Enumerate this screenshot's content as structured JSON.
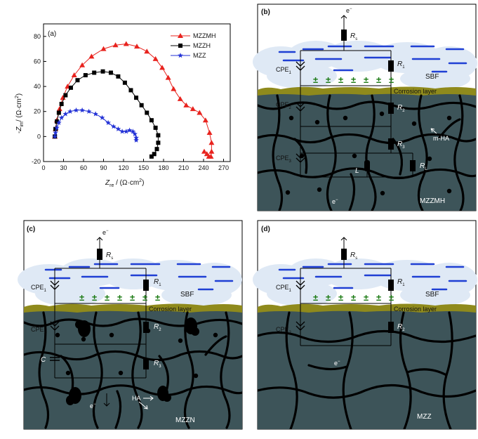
{
  "colors": {
    "red": "#e8231e",
    "black": "#000000",
    "blue": "#2332d6",
    "tissue": "#3d5459",
    "corrosion": "#8f8a1c",
    "sbf_cloud": "#dfe9f5",
    "plus_green": "#1a7a12",
    "electrolyte_blue": "#1f3fd4"
  },
  "panel_a": {
    "label": "(a)",
    "ylabel_main": "Z",
    "ylabel_sub": "im",
    "ylabel_prefix": "-",
    "ylabel_units": "/ (Ω·cm",
    "ylabel_sup": "2",
    "ylabel_close": ")",
    "xlabel_main": "Z",
    "xlabel_sub": "re",
    "xlabel_units": " / (Ω·cm",
    "xlabel_sup": "2",
    "xlabel_close": ")",
    "xticks": [
      "0",
      "30",
      "60",
      "90",
      "120",
      "150",
      "180",
      "210",
      "240",
      "270"
    ],
    "yticks": [
      "-20",
      "0",
      "20",
      "40",
      "60",
      "80"
    ]
  },
  "chart_data": {
    "type": "scatter",
    "xlabel": "Zre / (Ω·cm2)",
    "ylabel": "-Zim / (Ω·cm2)",
    "xlim": [
      0,
      280
    ],
    "ylim": [
      -20,
      90
    ],
    "legend_position": "top-right",
    "series": [
      {
        "name": "MZZMH",
        "marker": "triangle",
        "color": "#e8231e",
        "x": [
          17,
          18,
          20,
          24,
          29,
          36,
          46,
          58,
          72,
          90,
          108,
          124,
          140,
          155,
          168,
          178,
          187,
          195,
          205,
          214,
          224,
          234,
          243,
          249,
          252,
          252,
          251,
          248,
          245,
          241
        ],
        "y": [
          0,
          6,
          13,
          22,
          31,
          40,
          49,
          57,
          64,
          70,
          73,
          74,
          72,
          68,
          62,
          55,
          47,
          38,
          30,
          25,
          22,
          19,
          13,
          3,
          -5,
          -12,
          -16,
          -16,
          -14,
          -12
        ]
      },
      {
        "name": "MZZH",
        "marker": "square",
        "color": "#000000",
        "x": [
          17,
          18,
          20,
          23,
          27,
          33,
          41,
          51,
          63,
          76,
          89,
          101,
          112,
          122,
          131,
          139,
          147,
          155,
          162,
          168,
          172,
          172,
          170,
          166,
          162
        ],
        "y": [
          0,
          6,
          12,
          19,
          26,
          33,
          39,
          45,
          49,
          51,
          52,
          51,
          48,
          43,
          37,
          31,
          25,
          19,
          13,
          7,
          1,
          -5,
          -10,
          -14,
          -16
        ]
      },
      {
        "name": "MZZ",
        "marker": "star",
        "color": "#2332d6",
        "x": [
          17,
          18,
          20,
          23,
          27,
          33,
          40,
          49,
          58,
          68,
          78,
          88,
          97,
          105,
          112,
          118,
          124,
          129,
          134,
          137,
          139,
          139
        ],
        "y": [
          0,
          3,
          7,
          11,
          15,
          18,
          20,
          21,
          21,
          20,
          18,
          15,
          11,
          8,
          6,
          4,
          4,
          5,
          4,
          2,
          -1,
          -3
        ]
      }
    ]
  },
  "panel_b": {
    "label": "(b)",
    "electron": "e",
    "electron_sup": "−",
    "rs": "R",
    "rs_sub": "s",
    "r1": "R",
    "r1_sub": "1",
    "r2": "R",
    "r2_sub": "2",
    "r3": "R",
    "r3_sub": "3",
    "rl": "R",
    "rl_sub": "L",
    "cpe1": "CPE",
    "cpe1_sub": "1",
    "cpe2": "CPE",
    "cpe2_sub": "2",
    "cpe3": "CPE",
    "cpe3_sub": "3",
    "l": "L",
    "sbf": "SBF",
    "corrosion": "Corrosion layer",
    "mha": "m-HA",
    "e_bottom": "e",
    "e_bottom_sup": "−",
    "material": "MZZMH",
    "plus": "±"
  },
  "panel_c": {
    "label": "(c)",
    "electron": "e",
    "electron_sup": "−",
    "rs": "R",
    "rs_sub": "s",
    "r1": "R",
    "r1_sub": "1",
    "r2": "R",
    "r2_sub": "2",
    "r3": "R",
    "r3_sub": "3",
    "cpe1": "CPE",
    "cpe1_sub": "1",
    "cpe2": "CPE",
    "cpe2_sub": "2",
    "c": "C",
    "sbf": "SBF",
    "corrosion": "Corrosion layer",
    "ha": "HA",
    "e_bottom": "e",
    "e_bottom_sup": "−",
    "material": "MZZN",
    "plus": "±"
  },
  "panel_d": {
    "label": "(d)",
    "rs": "R",
    "rs_sub": "s",
    "r1": "R",
    "r1_sub": "1",
    "r2": "R",
    "r2_sub": "2",
    "cpe1": "CPE",
    "cpe1_sub": "1",
    "cpe2": "CPE",
    "cpe2_sub": "2",
    "sbf": "SBF",
    "corrosion": "Corrosion layer",
    "e_bottom": "e",
    "e_bottom_sup": "−",
    "material": "MZZ",
    "plus": "±"
  }
}
